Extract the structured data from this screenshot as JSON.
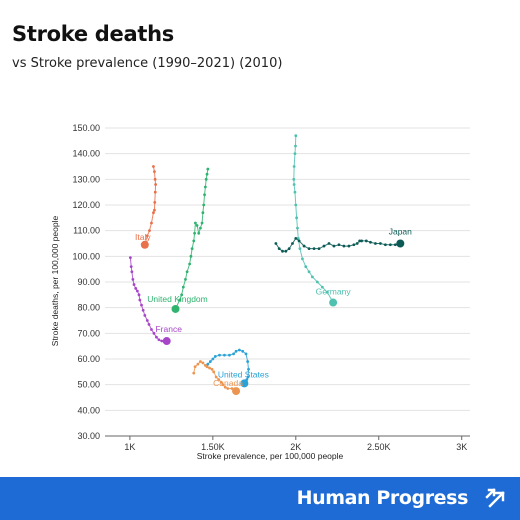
{
  "title": "Stroke deaths",
  "subtitle": "vs Stroke prevalence (1990–2021) (2010)",
  "footer": {
    "brand": "Human Progress",
    "brand_icon": "diagonal-arrows-icon",
    "background": "#1e6bd6"
  },
  "chart_data": {
    "type": "scatter",
    "title": "Stroke deaths",
    "subtitle": "vs Stroke prevalence (1990–2021) (2010)",
    "xlabel": "Stroke prevalence, per 100,000 people",
    "ylabel": "Stroke deaths, per 100,000 people",
    "xlim": [
      850,
      3050
    ],
    "ylim": [
      30,
      150
    ],
    "x_ticks": [
      1000,
      1500,
      2000,
      2500,
      3000
    ],
    "x_tick_labels": [
      "1K",
      "1.50K",
      "2K",
      "2.50K",
      "3K"
    ],
    "y_ticks": [
      30,
      40,
      50,
      60,
      70,
      80,
      90,
      100,
      110,
      120,
      130,
      140,
      150
    ],
    "y_tick_labels": [
      "30.00",
      "40.00",
      "50.00",
      "60.00",
      "70.00",
      "80.00",
      "90.00",
      "100.00",
      "110.00",
      "120.00",
      "130.00",
      "140.00",
      "150.00"
    ],
    "grid": true,
    "series": [
      {
        "name": "Italy",
        "color": "#e8704a",
        "points": [
          [
            1142,
            135
          ],
          [
            1148,
            133
          ],
          [
            1152,
            130
          ],
          [
            1155,
            128
          ],
          [
            1153,
            125
          ],
          [
            1150,
            121
          ],
          [
            1148,
            118
          ],
          [
            1142,
            117
          ],
          [
            1130,
            113
          ],
          [
            1118,
            110
          ],
          [
            1105,
            108
          ],
          [
            1090,
            104.5
          ]
        ]
      },
      {
        "name": "United Kingdom",
        "color": "#2fb36f",
        "points": [
          [
            1470,
            134
          ],
          [
            1465,
            132
          ],
          [
            1460,
            130
          ],
          [
            1455,
            127
          ],
          [
            1450,
            124
          ],
          [
            1445,
            120
          ],
          [
            1440,
            117
          ],
          [
            1435,
            113
          ],
          [
            1425,
            111
          ],
          [
            1415,
            109
          ],
          [
            1405,
            112
          ],
          [
            1395,
            113
          ],
          [
            1390,
            109
          ],
          [
            1385,
            106
          ],
          [
            1375,
            103
          ],
          [
            1368,
            100
          ],
          [
            1360,
            97
          ],
          [
            1345,
            94
          ],
          [
            1335,
            91
          ],
          [
            1322,
            88
          ],
          [
            1312,
            85
          ],
          [
            1300,
            83
          ],
          [
            1275,
            79.5
          ]
        ]
      },
      {
        "name": "France",
        "color": "#a745c9",
        "points": [
          [
            1003,
            99.5
          ],
          [
            1008,
            96
          ],
          [
            1012,
            94
          ],
          [
            1018,
            91
          ],
          [
            1025,
            89
          ],
          [
            1035,
            87.5
          ],
          [
            1045,
            86.5
          ],
          [
            1055,
            85
          ],
          [
            1060,
            83
          ],
          [
            1070,
            81
          ],
          [
            1080,
            79
          ],
          [
            1090,
            77
          ],
          [
            1105,
            75
          ],
          [
            1115,
            73.5
          ],
          [
            1130,
            71.5
          ],
          [
            1145,
            70
          ],
          [
            1160,
            68.5
          ],
          [
            1175,
            67.5
          ],
          [
            1192,
            67
          ],
          [
            1222,
            67
          ]
        ]
      },
      {
        "name": "Canada",
        "color": "#ed9550",
        "points": [
          [
            1385,
            54.5
          ],
          [
            1393,
            57
          ],
          [
            1410,
            58
          ],
          [
            1425,
            59
          ],
          [
            1440,
            58.5
          ],
          [
            1455,
            57.5
          ],
          [
            1465,
            57
          ],
          [
            1480,
            56.5
          ],
          [
            1495,
            56
          ],
          [
            1505,
            55
          ],
          [
            1520,
            53
          ],
          [
            1535,
            52
          ],
          [
            1550,
            51
          ],
          [
            1560,
            50
          ],
          [
            1575,
            49
          ],
          [
            1590,
            48.5
          ],
          [
            1615,
            48.5
          ],
          [
            1640,
            47.5
          ]
        ]
      },
      {
        "name": "United States",
        "color": "#2aa2d6",
        "points": [
          [
            1470,
            58
          ],
          [
            1485,
            59
          ],
          [
            1500,
            60
          ],
          [
            1515,
            61
          ],
          [
            1540,
            61.5
          ],
          [
            1570,
            61.5
          ],
          [
            1600,
            61.5
          ],
          [
            1625,
            62
          ],
          [
            1640,
            63
          ],
          [
            1660,
            63.5
          ],
          [
            1680,
            63
          ],
          [
            1700,
            62
          ],
          [
            1710,
            59
          ],
          [
            1715,
            56
          ],
          [
            1712,
            53
          ],
          [
            1705,
            52
          ],
          [
            1695,
            51
          ],
          [
            1690,
            50.5
          ]
        ]
      },
      {
        "name": "Germany",
        "color": "#4fc1b0",
        "points": [
          [
            2000,
            147
          ],
          [
            1998,
            143
          ],
          [
            1995,
            140
          ],
          [
            1990,
            135
          ],
          [
            1988,
            130
          ],
          [
            1990,
            128
          ],
          [
            1995,
            125
          ],
          [
            2000,
            120
          ],
          [
            2005,
            115
          ],
          [
            2010,
            111
          ],
          [
            2015,
            107
          ],
          [
            2025,
            103
          ],
          [
            2040,
            99
          ],
          [
            2060,
            96
          ],
          [
            2080,
            94
          ],
          [
            2100,
            92
          ],
          [
            2130,
            90
          ],
          [
            2160,
            88
          ],
          [
            2190,
            86
          ],
          [
            2225,
            82
          ]
        ]
      },
      {
        "name": "Japan",
        "color": "#0c5a55",
        "points": [
          [
            1880,
            105
          ],
          [
            1900,
            103
          ],
          [
            1920,
            102
          ],
          [
            1940,
            102
          ],
          [
            1960,
            103
          ],
          [
            1980,
            105
          ],
          [
            2000,
            107
          ],
          [
            2020,
            106
          ],
          [
            2050,
            104
          ],
          [
            2080,
            103
          ],
          [
            2110,
            103
          ],
          [
            2140,
            103
          ],
          [
            2170,
            104
          ],
          [
            2200,
            105
          ],
          [
            2230,
            104
          ],
          [
            2260,
            104.5
          ],
          [
            2290,
            104
          ],
          [
            2320,
            104
          ],
          [
            2350,
            104.5
          ],
          [
            2370,
            105
          ],
          [
            2385,
            106
          ],
          [
            2397,
            106
          ],
          [
            2425,
            106
          ],
          [
            2450,
            105.5
          ],
          [
            2480,
            105
          ],
          [
            2510,
            105
          ],
          [
            2540,
            104.5
          ],
          [
            2570,
            104.5
          ],
          [
            2600,
            104.5
          ],
          [
            2630,
            105
          ]
        ]
      }
    ]
  }
}
